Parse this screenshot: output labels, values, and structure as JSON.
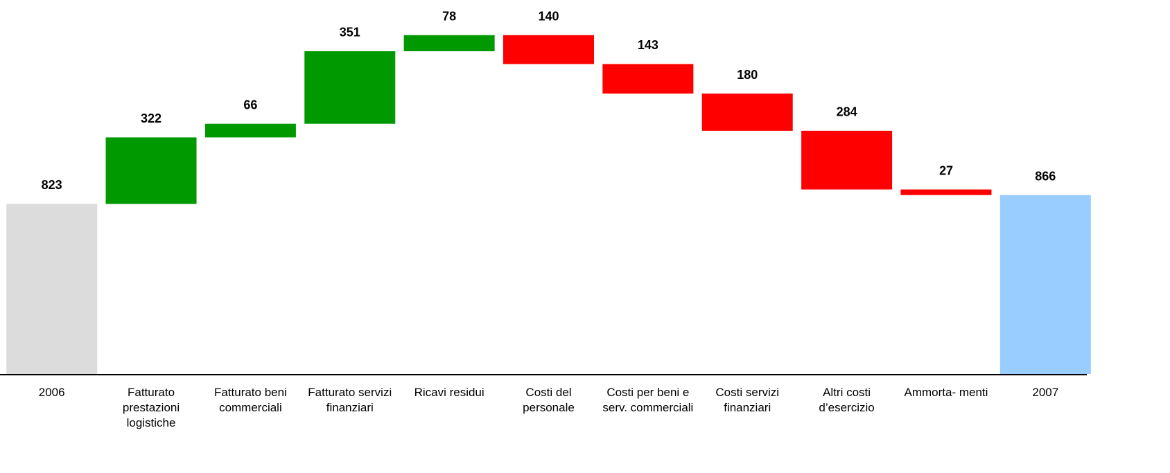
{
  "chart_data": {
    "type": "waterfall",
    "categories": [
      "2006",
      "Fatturato prestazioni logistiche",
      "Fatturato beni commerciali",
      "Fatturato servizi finanziari",
      "Ricavi residui",
      "Costi del personale",
      "Costi per beni e serv. commerciali",
      "Costi servizi finanziari",
      "Altri costi d’esercizio",
      "Ammorta- menti",
      "2007"
    ],
    "values": [
      823,
      322,
      66,
      351,
      78,
      -140,
      -143,
      -180,
      -284,
      -27,
      866
    ],
    "value_labels": [
      "823",
      "322",
      "66",
      "351",
      "78",
      "140",
      "143",
      "180",
      "284",
      "27",
      "866"
    ],
    "totals": [
      true,
      false,
      false,
      false,
      false,
      false,
      false,
      false,
      false,
      false,
      true
    ],
    "colors": [
      "#dcdcdc",
      "#009900",
      "#009900",
      "#009900",
      "#009900",
      "#ff0000",
      "#ff0000",
      "#ff0000",
      "#ff0000",
      "#ff0000",
      "#99ccff"
    ],
    "ylim": [
      0,
      1810
    ]
  }
}
